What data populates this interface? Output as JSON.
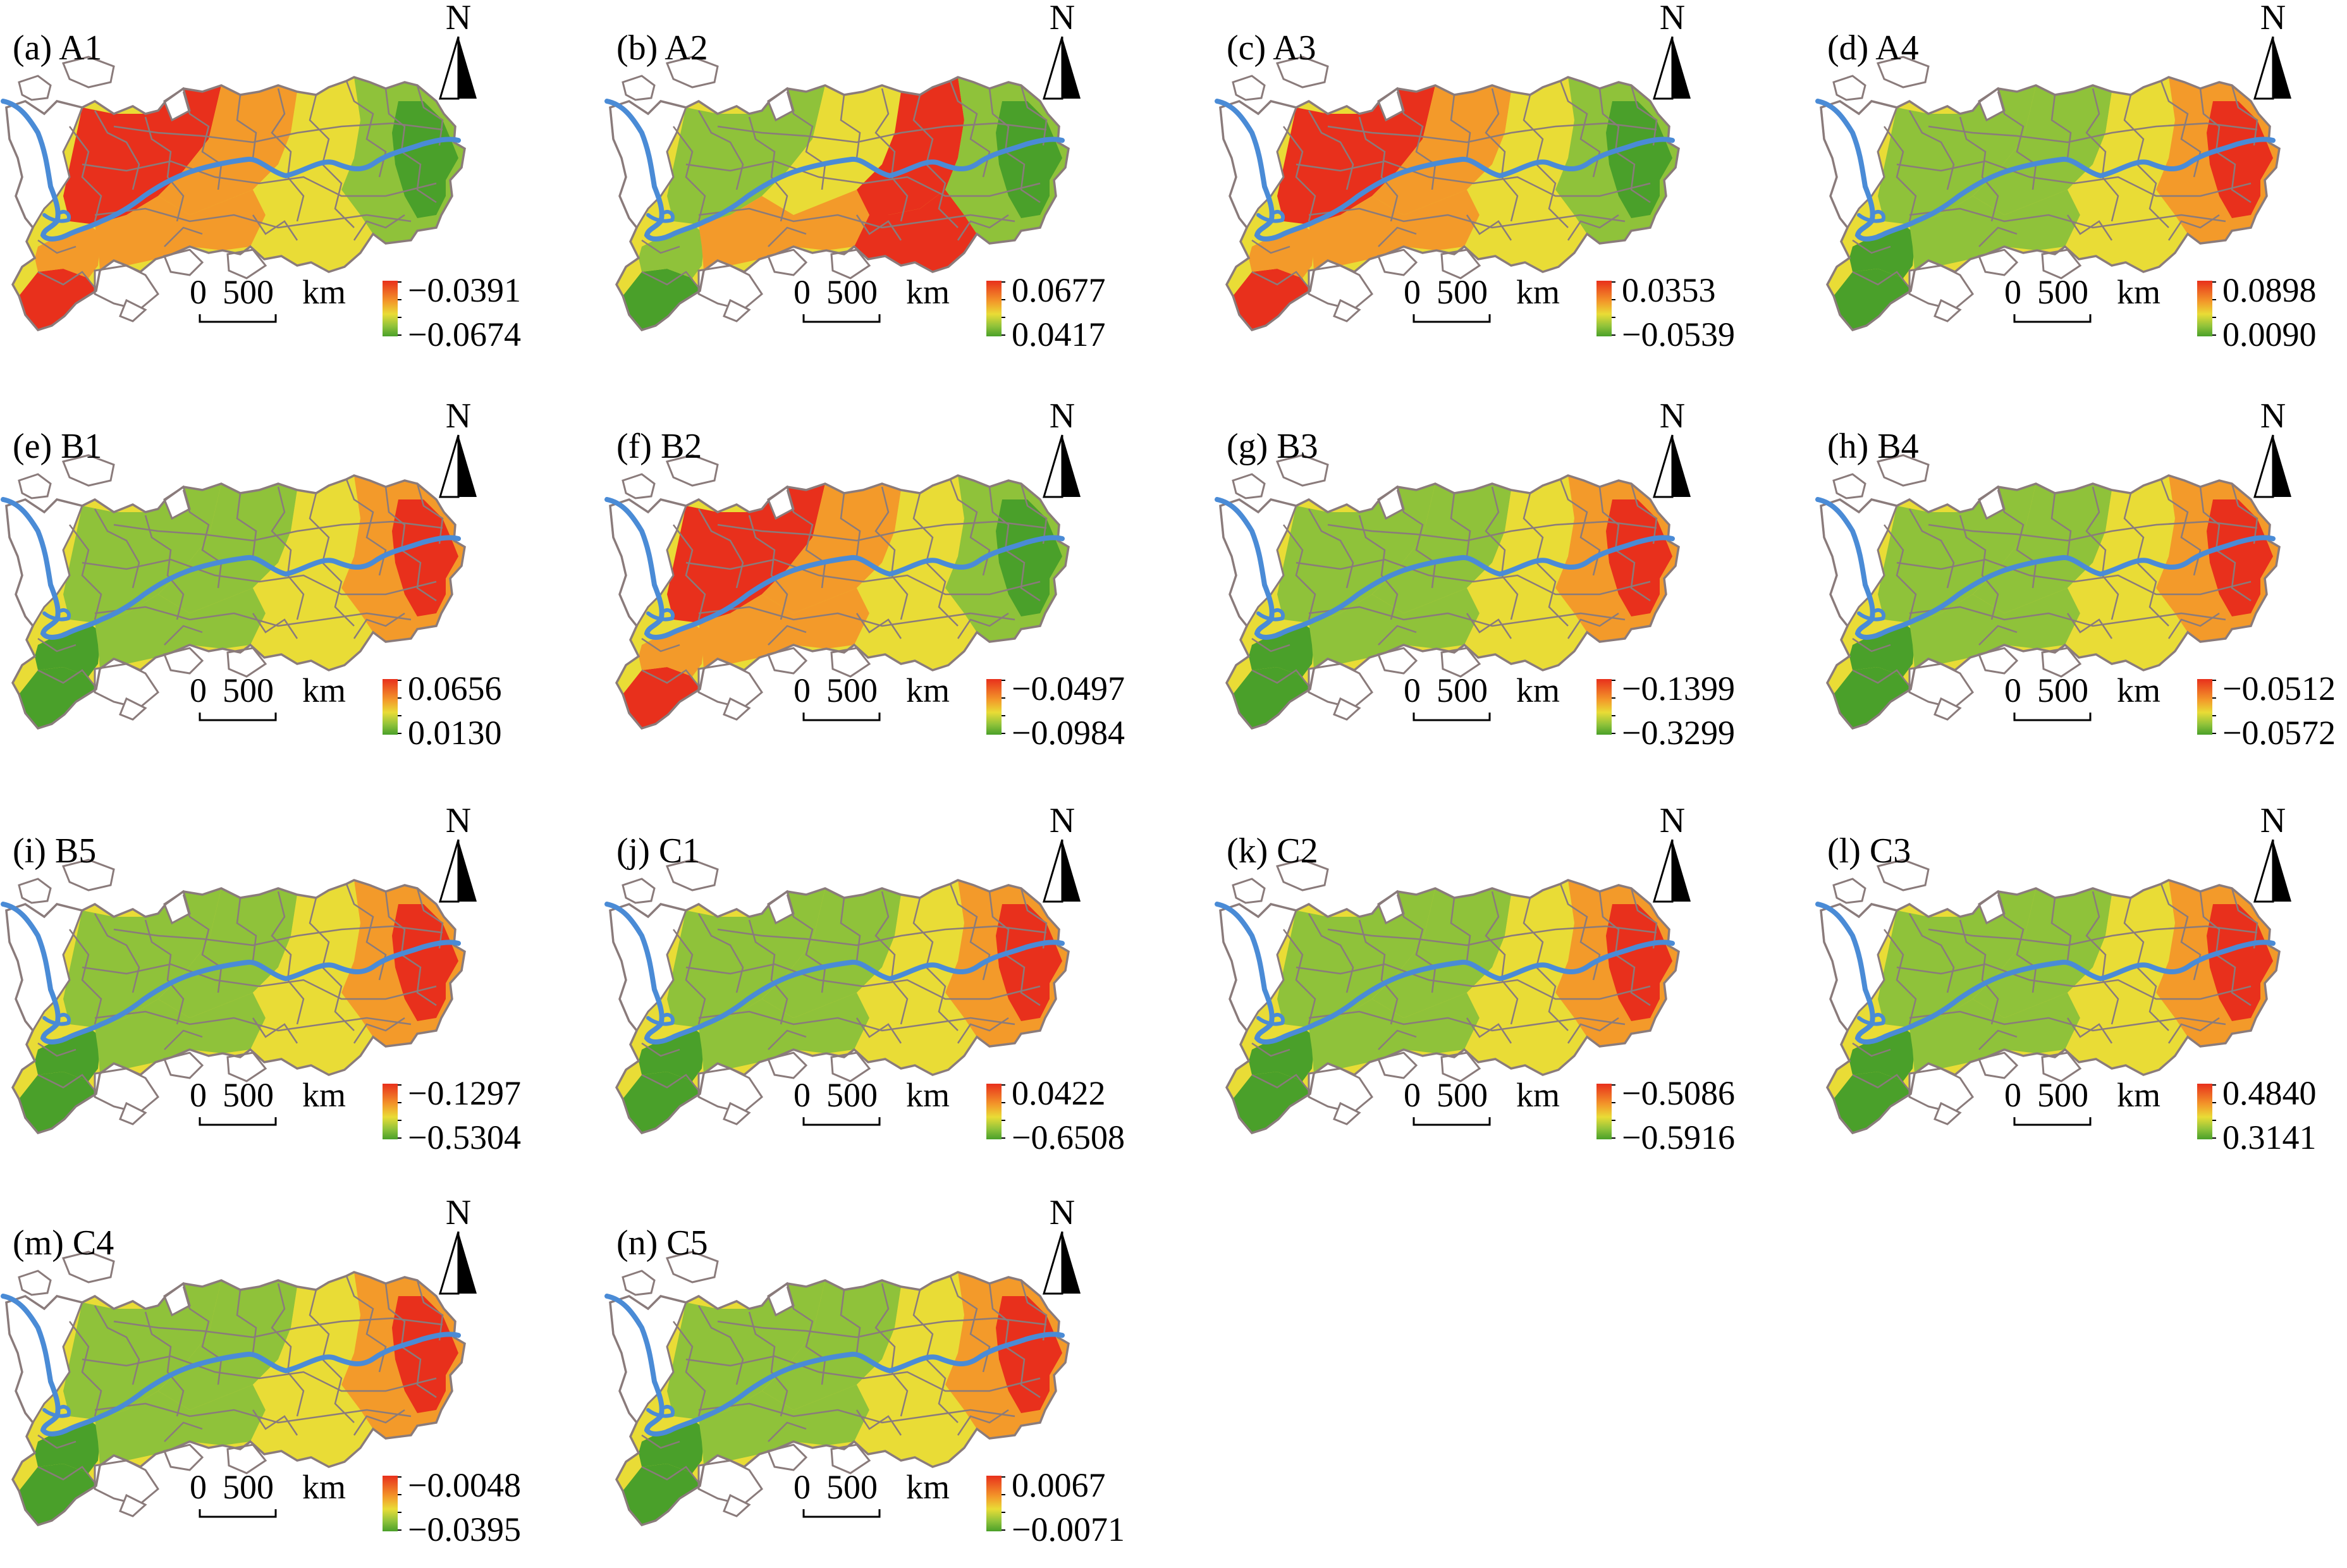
{
  "north_letter": "N",
  "scale": {
    "zero": "0",
    "five_hundred": "500",
    "unit": "km"
  },
  "colors": {
    "high": "#e8301c",
    "mid_high": "#f39a2a",
    "mid": "#e9dc36",
    "mid_low": "#8fc23a",
    "low": "#4aa02a",
    "no_data_fill": "#ffffff",
    "boundary": "#8a7b7b",
    "river": "#4a8bd6"
  },
  "panels": [
    {
      "label": "(a) A1",
      "legend_max": "−0.0391",
      "legend_min": "−0.0674",
      "pattern": "west"
    },
    {
      "label": "(b) A2",
      "legend_max": "0.0677",
      "legend_min": "0.0417",
      "pattern": "center"
    },
    {
      "label": "(c) A3",
      "legend_max": "0.0353",
      "legend_min": "−0.0539",
      "pattern": "west"
    },
    {
      "label": "(d) A4",
      "legend_max": "0.0898",
      "legend_min": "0.0090",
      "pattern": "east"
    },
    {
      "label": "(e) B1",
      "legend_max": "0.0656",
      "legend_min": "0.0130",
      "pattern": "east"
    },
    {
      "label": "(f) B2",
      "legend_max": "−0.0497",
      "legend_min": "−0.0984",
      "pattern": "west"
    },
    {
      "label": "(g) B3",
      "legend_max": "−0.1399",
      "legend_min": "−0.3299",
      "pattern": "east"
    },
    {
      "label": "(h) B4",
      "legend_max": "−0.0512",
      "legend_min": "−0.0572",
      "pattern": "east"
    },
    {
      "label": "(i) B5",
      "legend_max": "−0.1297",
      "legend_min": "−0.5304",
      "pattern": "east"
    },
    {
      "label": "(j) C1",
      "legend_max": "0.0422",
      "legend_min": "−0.6508",
      "pattern": "east"
    },
    {
      "label": "(k) C2",
      "legend_max": "−0.5086",
      "legend_min": "−0.5916",
      "pattern": "east"
    },
    {
      "label": "(l) C3",
      "legend_max": "0.4840",
      "legend_min": "0.3141",
      "pattern": "east"
    },
    {
      "label": "(m) C4",
      "legend_max": "−0.0048",
      "legend_min": "−0.0395",
      "pattern": "east"
    },
    {
      "label": "(n) C5",
      "legend_max": "0.0067",
      "legend_min": "−0.0071",
      "pattern": "east"
    }
  ]
}
